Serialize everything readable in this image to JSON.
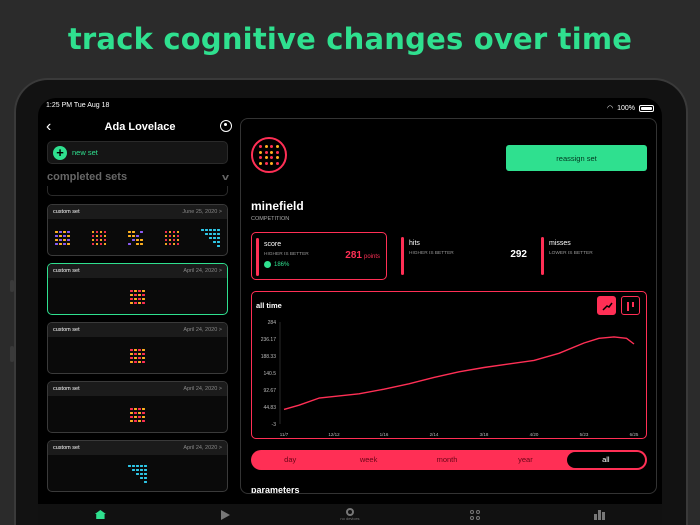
{
  "headline": "track cognitive changes over time",
  "status_bar": {
    "time_date": "1:25 PM   Tue Aug 18",
    "battery": "100%"
  },
  "sidebar": {
    "title": "Ada Lovelace",
    "new_set_label": "new set",
    "section_title": "completed sets",
    "sets": [
      {
        "name": "custom set",
        "date": "June 25, 2020 >",
        "selected": false
      },
      {
        "name": "custom set",
        "date": "April 24, 2020 >",
        "selected": true
      },
      {
        "name": "custom set",
        "date": "April 24, 2020 >",
        "selected": false
      },
      {
        "name": "custom set",
        "date": "April 24, 2020 >",
        "selected": false
      },
      {
        "name": "custom set",
        "date": "April 24, 2020 >",
        "selected": false
      }
    ]
  },
  "tabbar": {
    "devices_label": "no devices"
  },
  "detail": {
    "reassign_label": "reassign set",
    "test_name": "minefield",
    "test_type": "COMPETITION",
    "score": {
      "label": "score",
      "sub": "HIGHER IS BETTER",
      "change": "186%",
      "value": "281",
      "unit": "points"
    },
    "hits": {
      "label": "hits",
      "sub": "HIGHER IS BETTER",
      "value": "292"
    },
    "misses": {
      "label": "misses",
      "sub": "LOWER IS BETTER"
    },
    "chart_title": "all time",
    "ranges": [
      "day",
      "week",
      "month",
      "year",
      "all"
    ],
    "active_range": "all",
    "params_label": "parameters"
  },
  "colors": {
    "accent_green": "#2fe08f",
    "accent_red": "#ff2f55"
  },
  "chart_data": {
    "type": "line",
    "title": "all time",
    "x_ticks": [
      "11/7",
      "12/12",
      "1/16",
      "2/14",
      "3/18",
      "4/20",
      "5/23",
      "6/25"
    ],
    "y_ticks": [
      "284",
      "236.17",
      "188.33",
      "140.5",
      "92.67",
      "44.83",
      "-3"
    ],
    "ylim": [
      -3,
      284
    ],
    "series": [
      {
        "x": [
          0,
          0.3,
          0.7,
          1.1,
          1.5,
          2.0,
          2.5,
          3.0,
          3.5,
          4.0,
          4.5,
          5.0,
          5.5,
          6.0,
          6.3,
          6.6,
          6.85,
          7.0
        ],
        "values": [
          38,
          50,
          70,
          76,
          82,
          95,
          110,
          128,
          144,
          156,
          166,
          176,
          196,
          225,
          238,
          242,
          238,
          222
        ]
      }
    ]
  }
}
